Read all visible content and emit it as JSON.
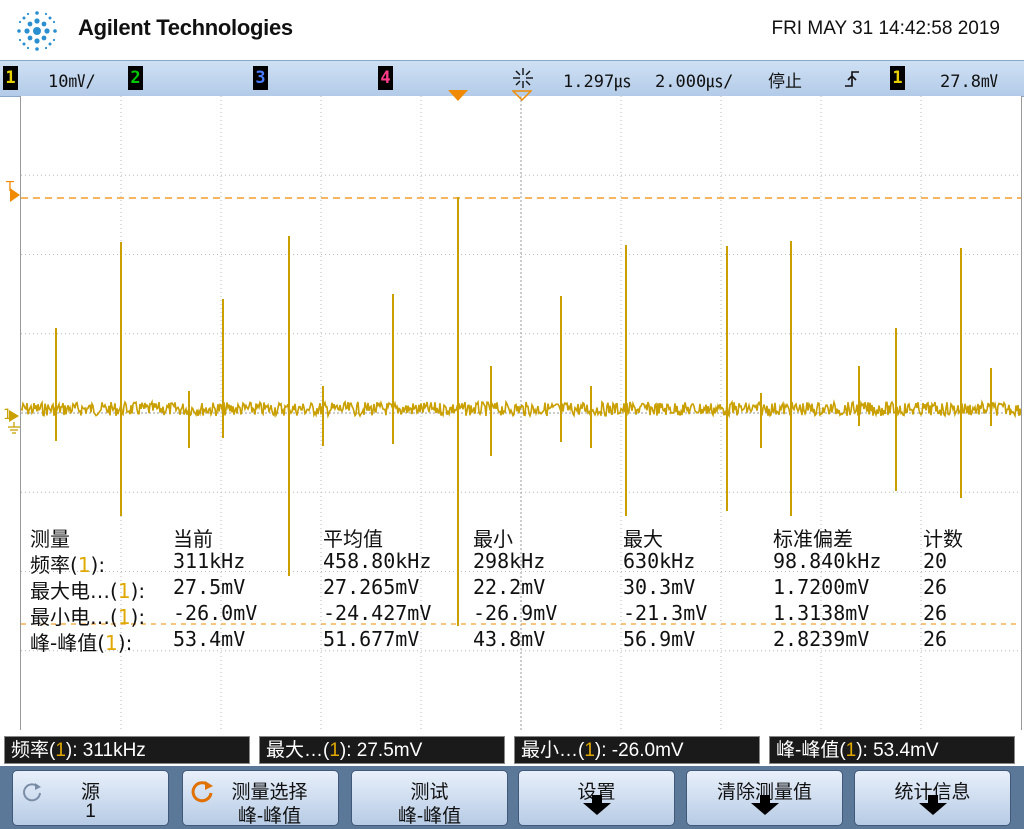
{
  "header": {
    "brand": "Agilent Technologies",
    "datetime": "FRI MAY 31 14:42:58 2019"
  },
  "status": {
    "ch1_num": "1",
    "ch1_scale": "10㎷/",
    "ch2_num": "2",
    "ch3_num": "3",
    "ch4_num": "4",
    "delay": "1.297㎲",
    "timebase": "2.000㎲/",
    "run_state": "停止",
    "trig_source": "1",
    "trig_level": "27.8㎷"
  },
  "colors": {
    "ch1": "#e8d000",
    "ch2": "#00c800",
    "ch3": "#4a7cff",
    "ch4": "#ff3c8c",
    "trace": "#c9a000",
    "trigger_marker": "#f08a00"
  },
  "markers": {
    "trigger_level": "T",
    "ground": "1"
  },
  "measurements": {
    "headers": [
      "测量",
      "当前",
      "平均值",
      "最小",
      "最大",
      "标准偏差",
      "计数"
    ],
    "rows": [
      {
        "name": "频率",
        "src": "1",
        "suffix": "):",
        "current": "311kHz",
        "mean": "458.80kHz",
        "min": "298kHz",
        "max": "630kHz",
        "std": "98.840kHz",
        "count": "20"
      },
      {
        "name": "最大电…",
        "src": "1",
        "suffix": "):",
        "current": "27.5mV",
        "mean": "27.265mV",
        "min": "22.2mV",
        "max": "30.3mV",
        "std": "1.7200mV",
        "count": "26"
      },
      {
        "name": "最小电…",
        "src": "1",
        "suffix": "):",
        "current": "-26.0mV",
        "mean": "-24.427mV",
        "min": "-26.9mV",
        "max": "-21.3mV",
        "std": "1.3138mV",
        "count": "26"
      },
      {
        "name": "峰-峰值",
        "src": "1",
        "suffix": "):",
        "current": "53.4mV",
        "mean": "51.677mV",
        "min": "43.8mV",
        "max": "56.9mV",
        "std": "2.8239mV",
        "count": "26"
      }
    ]
  },
  "strip": [
    {
      "name": "频率(",
      "src": "1",
      "value": "): 311kHz"
    },
    {
      "name": "最大…(",
      "src": "1",
      "value": "): 27.5mV"
    },
    {
      "name": "最小…(",
      "src": "1",
      "value": "): -26.0mV"
    },
    {
      "name": "峰-峰值(",
      "src": "1",
      "value": "): 53.4mV"
    }
  ],
  "softkeys": [
    {
      "line1": "源",
      "line2": "1",
      "icon": "rotate-knob-icon"
    },
    {
      "line1": "测量选择",
      "line2": "峰-峰值",
      "icon": "select-knob-icon"
    },
    {
      "line1": "测试",
      "line2": "峰-峰值"
    },
    {
      "line1": "设置",
      "icon": "submenu-arrow-icon"
    },
    {
      "line1": "清除测量值",
      "icon": "submenu-arrow-icon"
    },
    {
      "line1": "统计信息",
      "icon": "submenu-arrow-icon"
    }
  ]
}
